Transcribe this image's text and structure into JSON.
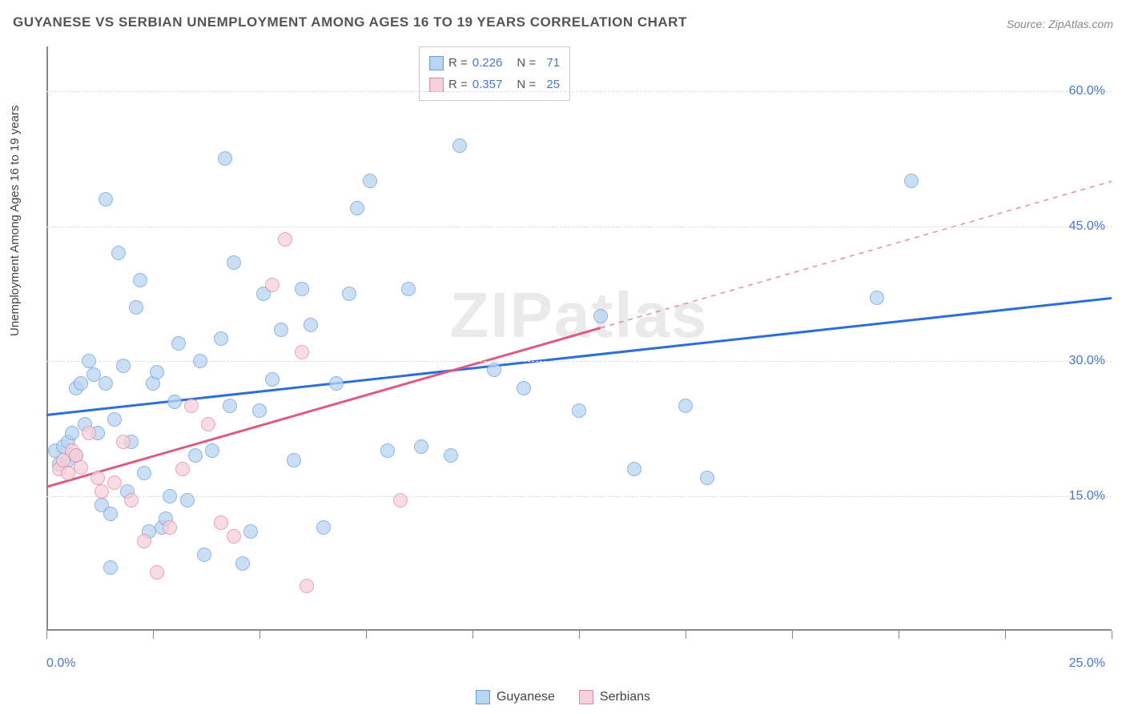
{
  "title": "GUYANESE VS SERBIAN UNEMPLOYMENT AMONG AGES 16 TO 19 YEARS CORRELATION CHART",
  "source_label": "Source:",
  "source_value": "ZipAtlas.com",
  "yaxis_label": "Unemployment Among Ages 16 to 19 years",
  "watermark": "ZIPatlas",
  "chart": {
    "type": "scatter",
    "background_color": "#ffffff",
    "grid_color": "#dddddd",
    "axis_color": "#888888",
    "xlim": [
      0,
      25
    ],
    "ylim": [
      0,
      65
    ],
    "x_ticks": [
      0,
      2.5,
      5,
      7.5,
      10,
      12.5,
      15,
      17.5,
      20,
      22.5,
      25
    ],
    "x_tick_labels": {
      "0": "0.0%",
      "25": "25.0%"
    },
    "y_gridlines": [
      15,
      30,
      45,
      60
    ],
    "y_tick_labels": {
      "15": "15.0%",
      "30": "30.0%",
      "45": "45.0%",
      "60": "60.0%"
    },
    "point_radius": 9,
    "series": [
      {
        "name": "Guyanese",
        "fill_color": "#b9d4f1",
        "stroke_color": "#6aa0db",
        "trend_color": "#2e6fd6",
        "trend_solid_end_x": 25,
        "trend_y_start": 24,
        "trend_y_end": 37,
        "R": "0.226",
        "N": "71",
        "points": [
          [
            0.2,
            20
          ],
          [
            0.3,
            18.5
          ],
          [
            0.4,
            20.5
          ],
          [
            0.5,
            19
          ],
          [
            0.5,
            21
          ],
          [
            0.6,
            22
          ],
          [
            0.7,
            19.5
          ],
          [
            0.7,
            27
          ],
          [
            0.8,
            27.5
          ],
          [
            0.9,
            23
          ],
          [
            1.0,
            30
          ],
          [
            1.1,
            28.5
          ],
          [
            1.2,
            22
          ],
          [
            1.3,
            14
          ],
          [
            1.4,
            27.5
          ],
          [
            1.4,
            48
          ],
          [
            1.5,
            7
          ],
          [
            1.5,
            13
          ],
          [
            1.6,
            23.5
          ],
          [
            1.7,
            42
          ],
          [
            1.8,
            29.5
          ],
          [
            1.9,
            15.5
          ],
          [
            2.0,
            21
          ],
          [
            2.1,
            36
          ],
          [
            2.2,
            39
          ],
          [
            2.3,
            17.5
          ],
          [
            2.4,
            11
          ],
          [
            2.5,
            27.5
          ],
          [
            2.6,
            28.8
          ],
          [
            2.7,
            11.5
          ],
          [
            2.8,
            12.5
          ],
          [
            2.9,
            15
          ],
          [
            3.0,
            25.5
          ],
          [
            3.1,
            32
          ],
          [
            3.3,
            14.5
          ],
          [
            3.5,
            19.5
          ],
          [
            3.6,
            30
          ],
          [
            3.7,
            8.5
          ],
          [
            3.9,
            20
          ],
          [
            4.1,
            32.5
          ],
          [
            4.2,
            52.5
          ],
          [
            4.3,
            25
          ],
          [
            4.4,
            41
          ],
          [
            4.6,
            7.5
          ],
          [
            4.8,
            11
          ],
          [
            5.0,
            24.5
          ],
          [
            5.1,
            37.5
          ],
          [
            5.3,
            28
          ],
          [
            5.5,
            33.5
          ],
          [
            5.8,
            19
          ],
          [
            6.0,
            38
          ],
          [
            6.2,
            34
          ],
          [
            6.5,
            11.5
          ],
          [
            6.8,
            27.5
          ],
          [
            7.1,
            37.5
          ],
          [
            7.3,
            47
          ],
          [
            7.6,
            50
          ],
          [
            8.0,
            20
          ],
          [
            8.5,
            38
          ],
          [
            8.8,
            20.5
          ],
          [
            9.5,
            19.5
          ],
          [
            9.7,
            54
          ],
          [
            10.5,
            29
          ],
          [
            11.2,
            27
          ],
          [
            12.5,
            24.5
          ],
          [
            13.0,
            35
          ],
          [
            13.8,
            18
          ],
          [
            15.0,
            25
          ],
          [
            15.5,
            17
          ],
          [
            19.5,
            37
          ],
          [
            20.3,
            50
          ]
        ]
      },
      {
        "name": "Serbians",
        "fill_color": "#f6d0da",
        "stroke_color": "#e18aa2",
        "trend_color": "#dc5c82",
        "trend_solid_end_x": 13,
        "trend_y_start": 16,
        "trend_y_end": 50,
        "R": "0.357",
        "N": "25",
        "points": [
          [
            0.3,
            18
          ],
          [
            0.4,
            19
          ],
          [
            0.5,
            17.5
          ],
          [
            0.6,
            20
          ],
          [
            0.7,
            19.5
          ],
          [
            0.8,
            18.2
          ],
          [
            1.0,
            22
          ],
          [
            1.2,
            17
          ],
          [
            1.3,
            15.5
          ],
          [
            1.6,
            16.5
          ],
          [
            1.8,
            21
          ],
          [
            2.0,
            14.5
          ],
          [
            2.3,
            10
          ],
          [
            2.6,
            6.5
          ],
          [
            2.9,
            11.5
          ],
          [
            3.2,
            18
          ],
          [
            3.4,
            25
          ],
          [
            3.8,
            23
          ],
          [
            4.1,
            12
          ],
          [
            4.4,
            10.5
          ],
          [
            5.3,
            38.5
          ],
          [
            5.6,
            43.5
          ],
          [
            6.0,
            31
          ],
          [
            6.1,
            5
          ],
          [
            8.3,
            14.5
          ]
        ]
      }
    ],
    "legend_bottom": [
      {
        "label": "Guyanese",
        "fill": "#b9d4f1",
        "stroke": "#6aa0db"
      },
      {
        "label": "Serbians",
        "fill": "#f6d0da",
        "stroke": "#e18aa2"
      }
    ]
  }
}
